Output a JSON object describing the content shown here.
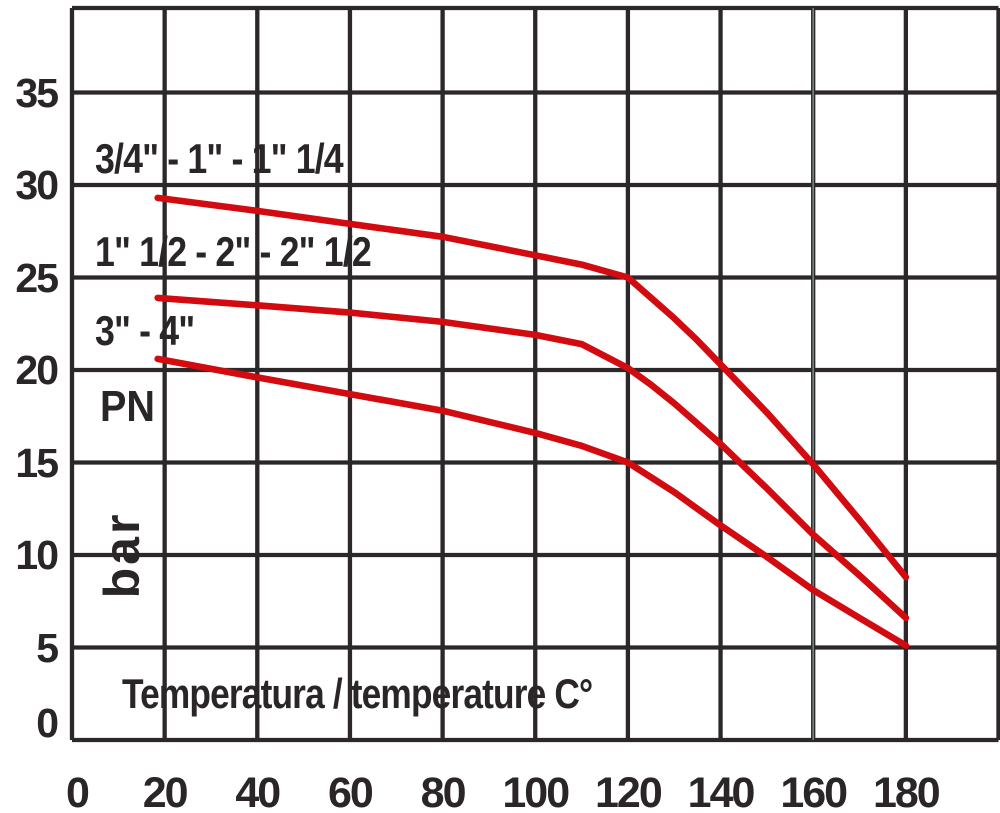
{
  "figure": {
    "background": "#ffffff",
    "grid_color": "#2c2728",
    "text_color": "#2a2527",
    "curve_color": "#d10b10",
    "gridline_artifact_color": "#6d8582"
  },
  "labels": {
    "pn": "PN",
    "pressure_unit": "bar"
  },
  "chart_data": {
    "type": "line",
    "title": "",
    "xlabel": "Temperatura / temperature C°",
    "ylabel": "PN (bar)",
    "xlim": [
      0,
      200
    ],
    "ylim": [
      0,
      39.6
    ],
    "x_tick_values": [
      0,
      20,
      40,
      60,
      80,
      100,
      120,
      140,
      160,
      180
    ],
    "y_tick_values": [
      35,
      30,
      25,
      20,
      15,
      10,
      5,
      0
    ],
    "grid": true,
    "legend_position": "inline-curve-labels",
    "x": [
      18.5,
      40,
      60,
      80,
      100,
      110,
      120,
      125,
      130,
      135,
      140,
      150,
      160,
      170,
      180
    ],
    "series": [
      {
        "name": "3/4\" - 1\" - 1\" 1/4",
        "values": [
          29.3,
          28.6,
          27.9,
          27.2,
          26.2,
          25.7,
          25.0,
          23.9,
          22.8,
          21.6,
          20.3,
          17.7,
          14.9,
          11.9,
          8.8
        ]
      },
      {
        "name": "1\" 1/2 - 2\" - 2\" 1/2",
        "values": [
          23.9,
          23.5,
          23.1,
          22.6,
          21.9,
          21.4,
          20.1,
          19.2,
          18.2,
          17.1,
          16.0,
          13.6,
          11.1,
          8.9,
          6.6
        ]
      },
      {
        "name": "3\" - 4\"",
        "values": [
          20.6,
          19.6,
          18.7,
          17.8,
          16.6,
          15.9,
          15.0,
          14.2,
          13.4,
          12.5,
          11.6,
          9.9,
          8.1,
          6.6,
          5.1
        ]
      }
    ]
  }
}
